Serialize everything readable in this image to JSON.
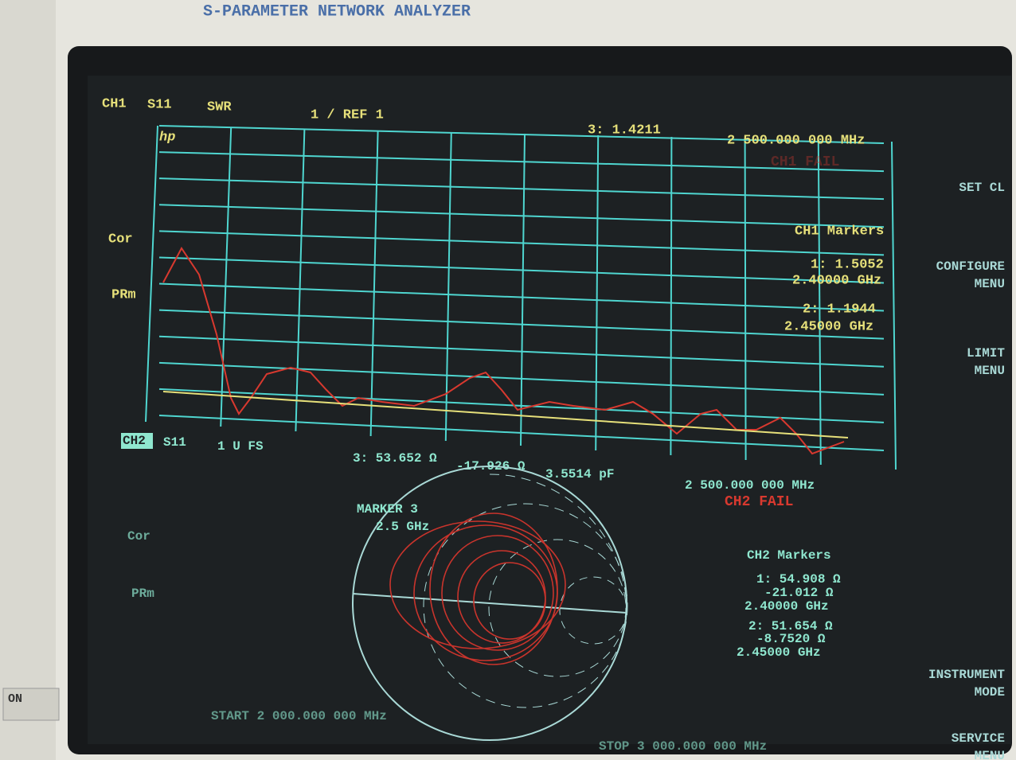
{
  "bezel": {
    "title": "S-PARAMETER NETWORK ANALYZER",
    "power": "ON"
  },
  "channel1": {
    "label": "CH1",
    "param": "S11",
    "format": "SWR",
    "scale": "1  / REF 1",
    "logo": "hp",
    "marker_readout": "3: 1.4211",
    "frequency": "2 500.000 000 MHz",
    "status": "CH1 FAIL",
    "flags": [
      "Cor",
      "PRm"
    ],
    "markers_title": "CH1 Markers",
    "markers": [
      [
        "1: 1.5052",
        "2.40000 GHz"
      ],
      [
        "2: 1.1944",
        "2.45000 GHz"
      ]
    ]
  },
  "channel2": {
    "label": "CH2",
    "param": "S11",
    "scale": "1 U FS",
    "marker_readout": [
      "3: 53.652 Ω",
      "-17.926 Ω",
      "3.5514 pF"
    ],
    "frequency": "2 500.000 000 MHz",
    "status": "CH2 FAIL",
    "marker_note": [
      "MARKER 3",
      "2.5 GHz"
    ],
    "flags": [
      "Cor",
      "PRm"
    ],
    "markers_title": "CH2 Markers",
    "markers": [
      [
        "1: 54.908 Ω",
        "-21.012 Ω",
        "2.40000 GHz"
      ],
      [
        "2: 51.654 Ω",
        "-8.7520 Ω",
        "2.45000 GHz"
      ]
    ]
  },
  "footer": {
    "start": "START 2 000.000 000 MHz",
    "stop": "STOP 3 000.000 000 MHz"
  },
  "softkeys": [
    [
      "SET CL"
    ],
    [
      "CONFIGURE",
      "MENU"
    ],
    [
      "LIMIT",
      "MENU"
    ],
    [
      "INSTRUMENT",
      "MODE"
    ],
    [
      "SERVICE",
      "MENU"
    ]
  ]
}
